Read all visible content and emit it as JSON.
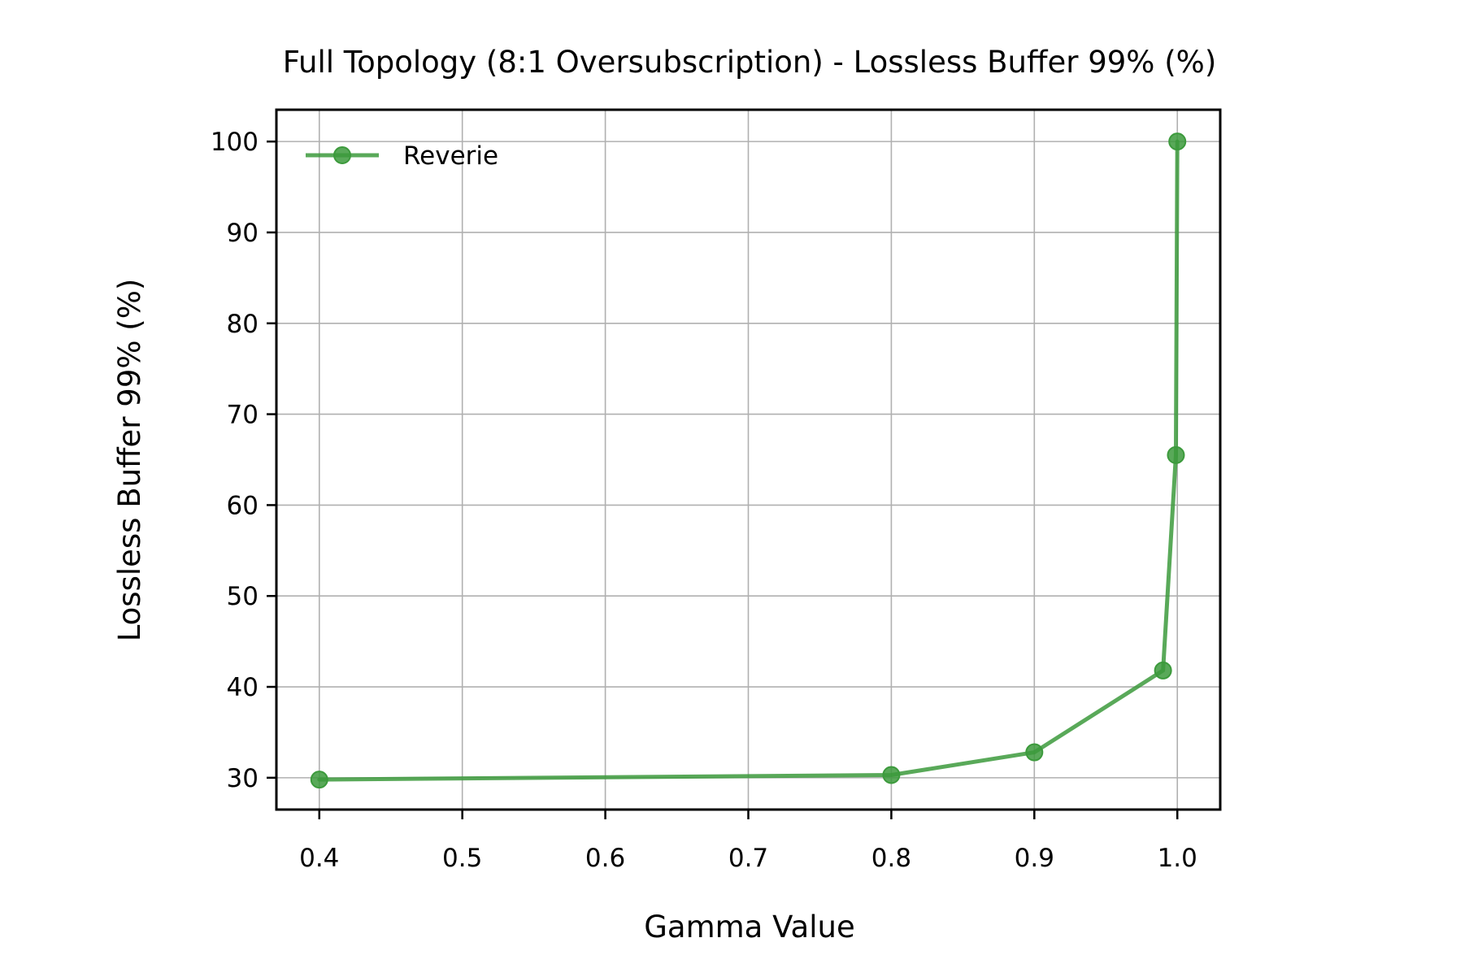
{
  "chart_data": {
    "type": "line",
    "title": "Full Topology (8:1 Oversubscription) - Lossless Buffer 99% (%)",
    "xlabel": "Gamma Value",
    "ylabel": "Lossless Buffer 99% (%)",
    "xlim": [
      0.37,
      1.03
    ],
    "ylim": [
      26.5,
      103.5
    ],
    "xticks": [
      0.4,
      0.5,
      0.6,
      0.7,
      0.8,
      0.9,
      1.0
    ],
    "xtick_labels": [
      "0.4",
      "0.5",
      "0.6",
      "0.7",
      "0.8",
      "0.9",
      "1.0"
    ],
    "yticks": [
      30,
      40,
      50,
      60,
      70,
      80,
      90,
      100
    ],
    "ytick_labels": [
      "30",
      "40",
      "50",
      "60",
      "70",
      "80",
      "90",
      "100"
    ],
    "grid": true,
    "legend": {
      "position": "upper-left"
    },
    "series": [
      {
        "name": "Reverie",
        "color": "#3c9a3c",
        "marker": "circle",
        "x": [
          0.4,
          0.8,
          0.9,
          0.99,
          0.999,
          1.0
        ],
        "y": [
          29.8,
          30.3,
          32.8,
          41.8,
          65.5,
          100.0
        ]
      }
    ]
  }
}
